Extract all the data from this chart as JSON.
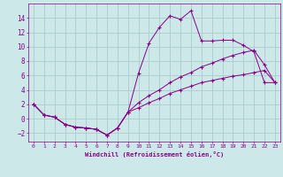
{
  "xlabel": "Windchill (Refroidissement éolien,°C)",
  "background_color": "#cce8e8",
  "line_color": "#880088",
  "grid_color": "#aacccc",
  "xlim": [
    -0.5,
    23.5
  ],
  "ylim": [
    -3.2,
    16
  ],
  "xticks": [
    0,
    1,
    2,
    3,
    4,
    5,
    6,
    7,
    8,
    9,
    10,
    11,
    12,
    13,
    14,
    15,
    16,
    17,
    18,
    19,
    20,
    21,
    22,
    23
  ],
  "yticks": [
    -2,
    0,
    2,
    4,
    6,
    8,
    10,
    12,
    14
  ],
  "line1_x": [
    0,
    1,
    2,
    3,
    4,
    5,
    6,
    7,
    8,
    9,
    10,
    11,
    12,
    13,
    14,
    15,
    16,
    17,
    18,
    19,
    20,
    21,
    22,
    23
  ],
  "line1_y": [
    2.0,
    0.5,
    0.2,
    -0.8,
    -1.2,
    -1.3,
    -1.5,
    -2.3,
    -1.3,
    0.9,
    6.3,
    10.5,
    12.7,
    14.3,
    13.8,
    15.0,
    10.8,
    10.8,
    10.9,
    10.9,
    10.2,
    9.3,
    5.0,
    5.0
  ],
  "line2_x": [
    0,
    1,
    2,
    3,
    4,
    5,
    6,
    7,
    8,
    9,
    10,
    11,
    12,
    13,
    14,
    15,
    16,
    17,
    18,
    19,
    20,
    21,
    22,
    23
  ],
  "line2_y": [
    2.0,
    0.5,
    0.2,
    -0.8,
    -1.2,
    -1.3,
    -1.5,
    -2.3,
    -1.3,
    0.9,
    1.5,
    2.2,
    2.8,
    3.5,
    4.0,
    4.5,
    5.0,
    5.3,
    5.6,
    5.9,
    6.1,
    6.4,
    6.7,
    5.0
  ],
  "line3_x": [
    0,
    1,
    2,
    3,
    4,
    5,
    6,
    7,
    8,
    9,
    10,
    11,
    12,
    13,
    14,
    15,
    16,
    17,
    18,
    19,
    20,
    21,
    22,
    23
  ],
  "line3_y": [
    2.0,
    0.5,
    0.2,
    -0.8,
    -1.2,
    -1.3,
    -1.5,
    -2.3,
    -1.3,
    0.9,
    2.2,
    3.2,
    4.0,
    5.0,
    5.8,
    6.4,
    7.2,
    7.7,
    8.3,
    8.8,
    9.2,
    9.5,
    7.5,
    5.0
  ]
}
